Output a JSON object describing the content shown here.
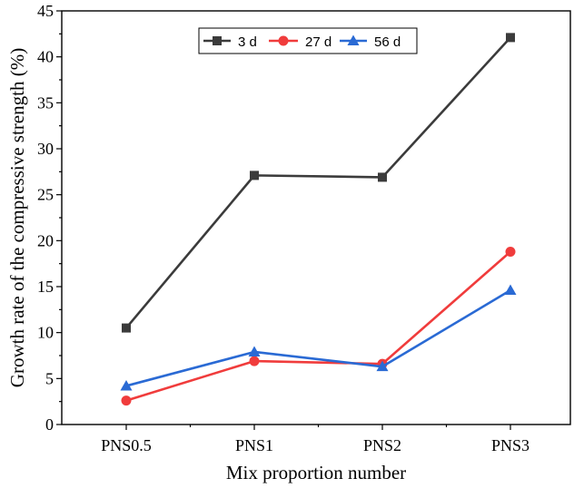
{
  "chart_data": {
    "type": "line",
    "categories": [
      "PNS0.5",
      "PNS1",
      "PNS2",
      "PNS3"
    ],
    "series": [
      {
        "name": "3 d",
        "values": [
          10.5,
          27.1,
          26.9,
          42.1
        ],
        "color": "#3b3b3b",
        "marker": "square"
      },
      {
        "name": "27 d",
        "values": [
          2.6,
          6.9,
          6.6,
          18.8
        ],
        "color": "#f03c3c",
        "marker": "circle"
      },
      {
        "name": "56 d",
        "values": [
          4.2,
          7.9,
          6.3,
          14.6
        ],
        "color": "#2a6ad4",
        "marker": "triangle"
      }
    ],
    "xlabel": "Mix proportion number",
    "ylabel": "Growth rate of the compressive strength (%)",
    "ylim": [
      0,
      45
    ],
    "yticks": [
      0,
      5,
      10,
      15,
      20,
      25,
      30,
      35,
      40,
      45
    ],
    "grid": false,
    "legend_position": "top-center"
  }
}
